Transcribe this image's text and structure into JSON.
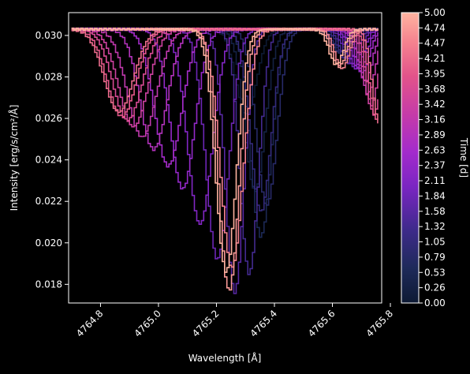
{
  "chart_data": {
    "type": "line",
    "xlabel": "Wavelength [Å]",
    "ylabel": "Intensity [erg/s/cm²/Å]",
    "xlim": [
      4764.69,
      4765.77
    ],
    "ylim": [
      0.0171,
      0.0311
    ],
    "x_ticks": [
      4764.8,
      4765.0,
      4765.2,
      4765.4,
      4765.6,
      4765.8
    ],
    "x_tick_labels": [
      "4764.8",
      "4765.0",
      "4765.2",
      "4765.4",
      "4765.6",
      "4765.8"
    ],
    "y_ticks": [
      0.018,
      0.02,
      0.022,
      0.024,
      0.026,
      0.028,
      0.03
    ],
    "y_tick_labels": [
      "0.018",
      "0.020",
      "0.022",
      "0.024",
      "0.026",
      "0.028",
      "0.030"
    ],
    "grid": false,
    "colorbar": {
      "label": "Time [d]",
      "min": 0.0,
      "max": 5.0,
      "colormap": "magma",
      "ticks": [
        "0.00",
        "0.26",
        "0.53",
        "0.79",
        "1.05",
        "1.32",
        "1.58",
        "1.84",
        "2.11",
        "2.37",
        "2.63",
        "2.89",
        "3.16",
        "3.42",
        "3.68",
        "3.95",
        "4.21",
        "4.47",
        "4.74",
        "5.00"
      ]
    },
    "series_model": {
      "description_time_days": [
        0.0,
        0.26,
        0.53,
        0.79,
        1.05,
        1.32,
        1.58,
        1.84,
        2.11,
        2.37,
        2.63,
        2.89,
        3.16,
        3.42,
        3.68,
        3.95,
        4.21,
        4.47,
        4.74,
        5.0
      ],
      "continuum": 0.0303,
      "line1_center": [
        4765.3,
        4765.33,
        4765.35,
        4765.37,
        4765.35,
        4765.31,
        4765.26,
        4765.2,
        4765.14,
        4765.08,
        4765.03,
        4764.98,
        4764.94,
        4764.91,
        4764.89,
        4764.87,
        4764.86,
        4765.25,
        4765.24,
        4765.23
      ],
      "line1_min": [
        0.0262,
        0.0225,
        0.0203,
        0.0218,
        0.0215,
        0.0185,
        0.0176,
        0.0192,
        0.0209,
        0.0226,
        0.0237,
        0.0245,
        0.0251,
        0.0256,
        0.0259,
        0.0261,
        0.0263,
        0.0188,
        0.0177,
        0.0186
      ],
      "line1_width": [
        0.05,
        0.05,
        0.05,
        0.05,
        0.05,
        0.045,
        0.045,
        0.055,
        0.06,
        0.06,
        0.065,
        0.065,
        0.07,
        0.07,
        0.07,
        0.07,
        0.07,
        0.055,
        0.05,
        0.05
      ],
      "line2_center": [
        4765.6,
        4765.61,
        4765.62,
        4765.63,
        4765.64,
        4765.65,
        4765.66,
        4765.67,
        4765.68,
        4765.69,
        4765.7,
        4765.71,
        4765.72,
        4765.73,
        4765.74,
        4765.75,
        4765.76,
        4765.63,
        4765.62,
        4765.61
      ],
      "line2_min": [
        0.0296,
        0.0294,
        0.0292,
        0.029,
        0.0289,
        0.0287,
        0.0286,
        0.0285,
        0.0284,
        0.0283,
        0.0282,
        0.0278,
        0.0272,
        0.0266,
        0.0262,
        0.0259,
        0.0257,
        0.0284,
        0.0285,
        0.0286
      ]
    }
  }
}
